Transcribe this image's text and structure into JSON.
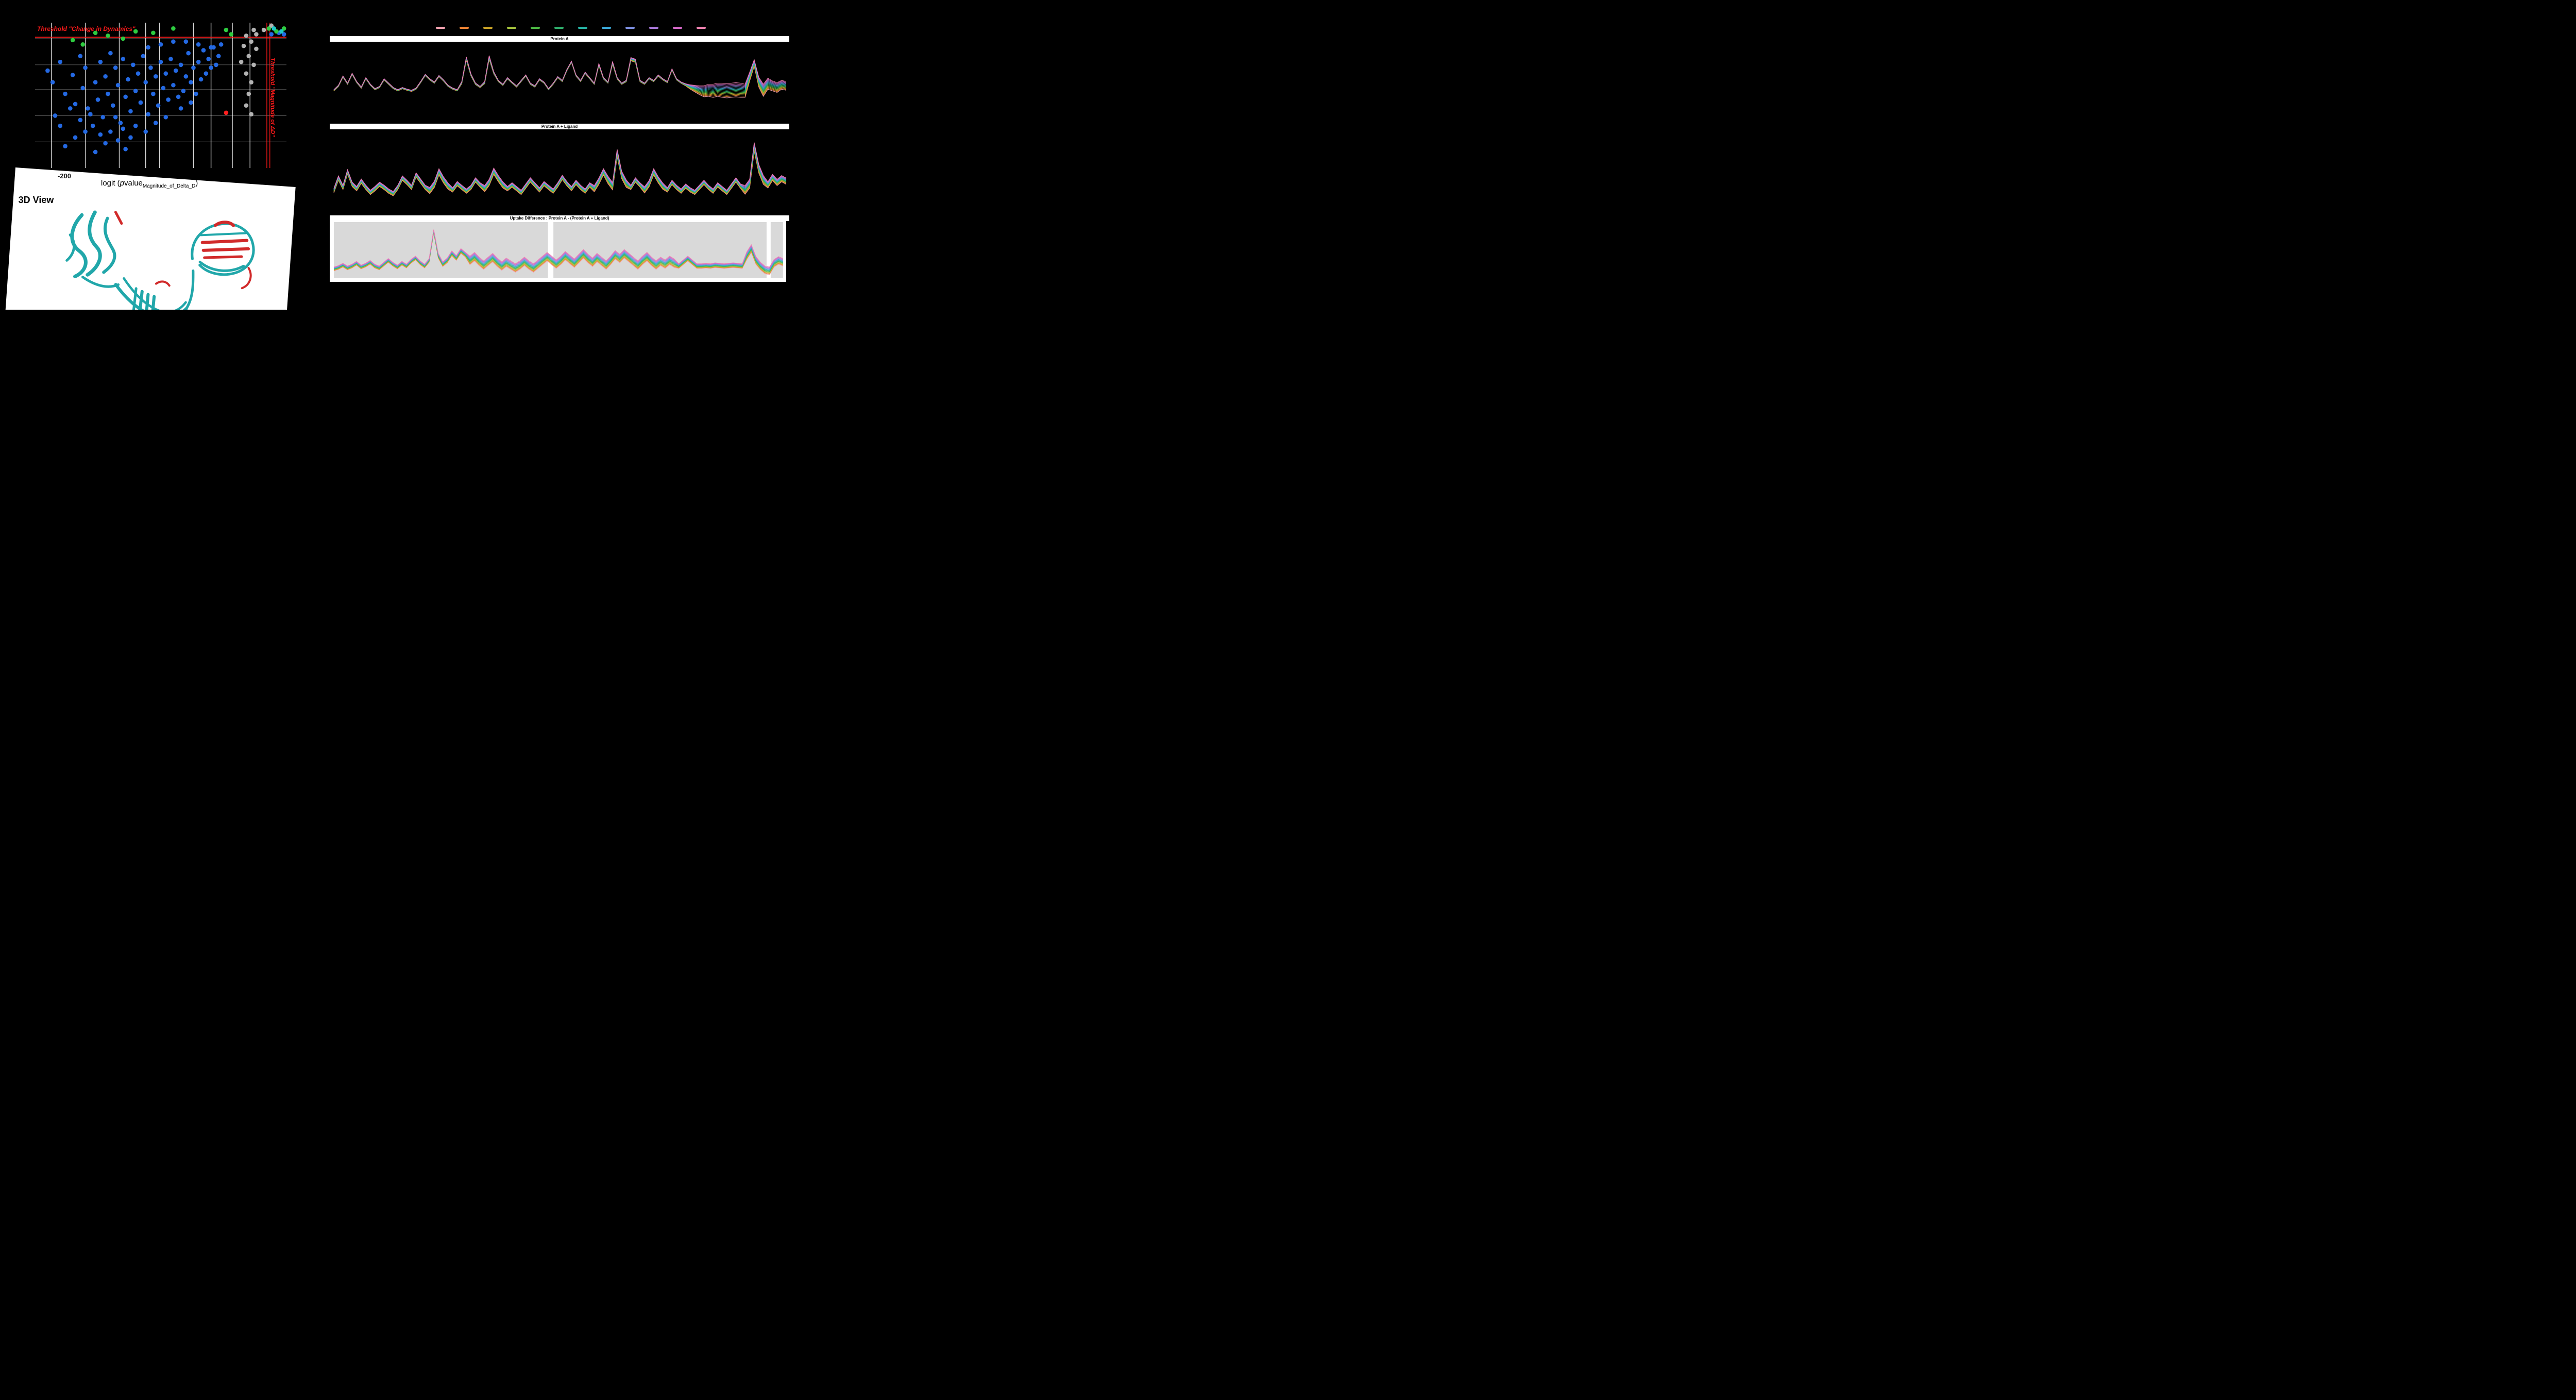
{
  "canvas": {
    "background": "#000000",
    "accent_red": "#ff1a1a"
  },
  "legend": {
    "colors": [
      "#f2a2b0",
      "#ee8434",
      "#c9a227",
      "#a3c13c",
      "#4cb944",
      "#2fae6b",
      "#27b4a5",
      "#3aa8d8",
      "#7d8fe0",
      "#a878d8",
      "#d468c8",
      "#ee82b0"
    ]
  },
  "view3d": {
    "label": "3D View",
    "ribbon_color": "#16a3a6",
    "highlight_color": "#cf1f1f"
  },
  "chart_data": [
    {
      "type": "scatter",
      "name": "volcano-plot",
      "xlabel_parts": {
        "prefix": "logit (",
        "italic": "p",
        "rest": "value",
        "subscript": "Magnitude_of_Delta_D",
        "suffix": ")"
      },
      "x_ticks": [
        "-200"
      ],
      "threshold_labels": {
        "horizontal": "Threshold \"Change in Dynamics\"",
        "vertical": "Threshold \"Magnitude of ΔD\""
      },
      "threshold_color": "#ff1a1a",
      "hline_y": 0.1,
      "vlines_x": [
        0.922,
        0.934
      ],
      "gridlines_x": [
        0.065,
        0.2,
        0.335,
        0.44,
        0.495,
        0.63,
        0.7,
        0.785,
        0.855
      ],
      "gridlines_y": [
        0.11,
        0.29,
        0.46,
        0.64,
        0.82
      ],
      "point_colors": {
        "b": "#2469e3",
        "g": "#2ecc40",
        "y": "#b3b3b3",
        "r": "#ff1f1f",
        "t": "#1fc9c9"
      },
      "points_blue": [
        [
          5,
          33
        ],
        [
          7,
          41
        ],
        [
          8,
          64
        ],
        [
          10,
          27
        ],
        [
          10,
          71
        ],
        [
          12,
          49
        ],
        [
          12,
          85
        ],
        [
          14,
          59
        ],
        [
          15,
          36
        ],
        [
          16,
          56
        ],
        [
          16,
          79
        ],
        [
          18,
          23
        ],
        [
          18,
          67
        ],
        [
          19,
          45
        ],
        [
          20,
          31
        ],
        [
          20,
          75
        ],
        [
          21,
          59
        ],
        [
          22,
          63
        ],
        [
          23,
          71
        ],
        [
          24,
          41
        ],
        [
          24,
          89
        ],
        [
          25,
          53
        ],
        [
          26,
          27
        ],
        [
          26,
          77
        ],
        [
          27,
          65
        ],
        [
          28,
          37
        ],
        [
          28,
          83
        ],
        [
          29,
          49
        ],
        [
          30,
          21
        ],
        [
          30,
          75
        ],
        [
          31,
          57
        ],
        [
          32,
          31
        ],
        [
          32,
          65
        ],
        [
          33,
          43
        ],
        [
          33,
          81
        ],
        [
          34,
          69
        ],
        [
          35,
          25
        ],
        [
          35,
          73
        ],
        [
          36,
          51
        ],
        [
          36,
          87
        ],
        [
          37,
          39
        ],
        [
          38,
          61
        ],
        [
          38,
          79
        ],
        [
          39,
          29
        ],
        [
          40,
          47
        ],
        [
          40,
          71
        ],
        [
          41,
          35
        ],
        [
          42,
          55
        ],
        [
          43,
          23
        ],
        [
          44,
          41
        ],
        [
          44,
          75
        ],
        [
          45,
          63
        ],
        [
          45,
          17
        ],
        [
          46,
          31
        ],
        [
          47,
          49
        ],
        [
          48,
          37
        ],
        [
          48,
          69
        ],
        [
          49,
          57
        ],
        [
          50,
          27
        ],
        [
          50,
          15
        ],
        [
          51,
          45
        ],
        [
          52,
          35
        ],
        [
          52,
          65
        ],
        [
          53,
          53
        ],
        [
          54,
          25
        ],
        [
          55,
          43
        ],
        [
          55,
          13
        ],
        [
          56,
          33
        ],
        [
          57,
          51
        ],
        [
          58,
          29
        ],
        [
          58,
          59
        ],
        [
          59,
          47
        ],
        [
          60,
          37
        ],
        [
          60,
          13
        ],
        [
          61,
          21
        ],
        [
          62,
          41
        ],
        [
          62,
          55
        ],
        [
          63,
          31
        ],
        [
          64,
          49
        ],
        [
          65,
          27
        ],
        [
          65,
          15
        ],
        [
          66,
          39
        ],
        [
          67,
          19
        ],
        [
          68,
          35
        ],
        [
          69,
          25
        ],
        [
          70,
          31
        ],
        [
          70,
          17
        ],
        [
          71,
          17
        ],
        [
          72,
          29
        ],
        [
          73,
          23
        ],
        [
          74,
          15
        ],
        [
          94,
          8
        ],
        [
          97,
          7
        ],
        [
          99,
          8
        ]
      ],
      "points_green": [
        [
          15,
          12
        ],
        [
          19,
          15
        ],
        [
          24,
          7
        ],
        [
          29,
          9
        ],
        [
          35,
          11
        ],
        [
          40,
          6
        ],
        [
          47,
          7
        ],
        [
          55,
          4
        ],
        [
          76,
          5
        ],
        [
          78,
          8
        ],
        [
          93,
          4
        ],
        [
          96,
          6
        ],
        [
          99,
          4
        ]
      ],
      "points_gray": [
        [
          84,
          9
        ],
        [
          86,
          13
        ],
        [
          88,
          18
        ],
        [
          85,
          23
        ],
        [
          87,
          29
        ],
        [
          84,
          35
        ],
        [
          86,
          41
        ],
        [
          85,
          49
        ],
        [
          84,
          57
        ],
        [
          86,
          63
        ],
        [
          83,
          16
        ],
        [
          82,
          27
        ],
        [
          88,
          8
        ],
        [
          87,
          5
        ],
        [
          91,
          5
        ],
        [
          94,
          2
        ]
      ],
      "points_teal": [
        [
          95,
          4
        ],
        [
          98,
          6
        ]
      ],
      "points_red": [
        [
          76,
          62
        ]
      ]
    },
    {
      "type": "line",
      "title": "Protein A",
      "series_count": 12,
      "pad_top": 20,
      "pad_bottom": 30,
      "base": [
        0.3,
        0.38,
        0.55,
        0.42,
        0.6,
        0.45,
        0.35,
        0.52,
        0.4,
        0.32,
        0.36,
        0.5,
        0.42,
        0.34,
        0.3,
        0.34,
        0.31,
        0.29,
        0.33,
        0.45,
        0.58,
        0.5,
        0.44,
        0.56,
        0.48,
        0.38,
        0.33,
        0.3,
        0.44,
        0.88,
        0.58,
        0.42,
        0.36,
        0.44,
        0.9,
        0.62,
        0.47,
        0.4,
        0.52,
        0.44,
        0.37,
        0.47,
        0.57,
        0.42,
        0.37,
        0.5,
        0.44,
        0.32,
        0.42,
        0.54,
        0.47,
        0.67,
        0.82,
        0.57,
        0.47,
        0.62,
        0.52,
        0.42,
        0.77,
        0.52,
        0.44,
        0.8,
        0.52,
        0.42,
        0.47,
        0.87,
        0.84,
        0.47,
        0.42,
        0.52,
        0.47,
        0.57,
        0.5,
        0.45,
        0.68,
        0.5,
        0.44,
        0.4,
        0.36,
        0.33,
        0.3,
        0.28,
        0.3,
        0.29,
        0.31,
        0.3,
        0.29,
        0.3,
        0.31,
        0.3,
        0.29,
        0.55,
        0.8,
        0.45,
        0.3,
        0.42,
        0.38,
        0.35,
        0.4,
        0.38
      ],
      "spread": [
        0.012,
        0.012,
        0.012,
        0.012,
        0.012,
        0.012,
        0.012,
        0.012,
        0.012,
        0.012,
        0.012,
        0.012,
        0.012,
        0.012,
        0.012,
        0.012,
        0.012,
        0.012,
        0.012,
        0.012,
        0.012,
        0.012,
        0.012,
        0.012,
        0.012,
        0.012,
        0.012,
        0.012,
        0.02,
        0.03,
        0.02,
        0.015,
        0.012,
        0.02,
        0.035,
        0.02,
        0.012,
        0.012,
        0.012,
        0.012,
        0.012,
        0.012,
        0.012,
        0.012,
        0.012,
        0.012,
        0.012,
        0.012,
        0.012,
        0.012,
        0.012,
        0.012,
        0.012,
        0.012,
        0.012,
        0.012,
        0.012,
        0.012,
        0.02,
        0.015,
        0.012,
        0.025,
        0.015,
        0.012,
        0.015,
        0.03,
        0.03,
        0.015,
        0.012,
        0.012,
        0.012,
        0.012,
        0.012,
        0.012,
        0.012,
        0.012,
        0.012,
        0.02,
        0.04,
        0.06,
        0.08,
        0.1,
        0.11,
        0.12,
        0.12,
        0.13,
        0.13,
        0.13,
        0.13,
        0.13,
        0.12,
        0.08,
        0.06,
        0.09,
        0.11,
        0.1,
        0.09,
        0.09,
        0.08,
        0.08
      ]
    },
    {
      "type": "line",
      "title": "Protein A + Ligand",
      "series_count": 12,
      "pad_top": 28,
      "pad_bottom": 14,
      "base": [
        0.25,
        0.45,
        0.3,
        0.55,
        0.35,
        0.28,
        0.4,
        0.3,
        0.22,
        0.28,
        0.35,
        0.3,
        0.24,
        0.2,
        0.3,
        0.45,
        0.38,
        0.3,
        0.5,
        0.4,
        0.3,
        0.25,
        0.35,
        0.55,
        0.42,
        0.32,
        0.26,
        0.36,
        0.3,
        0.24,
        0.3,
        0.42,
        0.34,
        0.28,
        0.38,
        0.56,
        0.44,
        0.34,
        0.28,
        0.34,
        0.28,
        0.22,
        0.32,
        0.42,
        0.34,
        0.26,
        0.36,
        0.3,
        0.24,
        0.34,
        0.46,
        0.36,
        0.28,
        0.38,
        0.3,
        0.24,
        0.34,
        0.28,
        0.4,
        0.55,
        0.42,
        0.32,
        0.85,
        0.5,
        0.36,
        0.3,
        0.42,
        0.34,
        0.26,
        0.36,
        0.55,
        0.42,
        0.32,
        0.26,
        0.38,
        0.3,
        0.24,
        0.32,
        0.26,
        0.22,
        0.3,
        0.38,
        0.3,
        0.24,
        0.34,
        0.28,
        0.22,
        0.32,
        0.42,
        0.32,
        0.26,
        0.36,
        0.95,
        0.6,
        0.42,
        0.34,
        0.46,
        0.38,
        0.44,
        0.4
      ],
      "spread": [
        0.035,
        0.035,
        0.035,
        0.035,
        0.035,
        0.035,
        0.035,
        0.035,
        0.035,
        0.035,
        0.035,
        0.035,
        0.035,
        0.035,
        0.035,
        0.035,
        0.035,
        0.035,
        0.035,
        0.035,
        0.035,
        0.05,
        0.05,
        0.05,
        0.05,
        0.05,
        0.035,
        0.035,
        0.035,
        0.035,
        0.035,
        0.035,
        0.035,
        0.05,
        0.05,
        0.05,
        0.05,
        0.05,
        0.035,
        0.035,
        0.035,
        0.035,
        0.035,
        0.035,
        0.035,
        0.035,
        0.035,
        0.035,
        0.035,
        0.035,
        0.035,
        0.035,
        0.035,
        0.035,
        0.035,
        0.035,
        0.035,
        0.05,
        0.05,
        0.05,
        0.06,
        0.06,
        0.06,
        0.06,
        0.06,
        0.035,
        0.035,
        0.035,
        0.05,
        0.05,
        0.05,
        0.05,
        0.05,
        0.035,
        0.035,
        0.035,
        0.035,
        0.035,
        0.035,
        0.035,
        0.035,
        0.035,
        0.035,
        0.035,
        0.035,
        0.035,
        0.035,
        0.035,
        0.035,
        0.035,
        0.07,
        0.07,
        0.07,
        0.07,
        0.07,
        0.05,
        0.05,
        0.05,
        0.05,
        0.05
      ]
    },
    {
      "type": "line",
      "title": "Uptake Difference : Protein A - (Protein A + Ligand)",
      "series_count": 12,
      "pad_top": 12,
      "pad_bottom": 14,
      "plot_bg": "#d9d9d9",
      "bg_rects": [
        [
          0.009,
          0.478
        ],
        [
          0.49,
          0.957
        ],
        [
          0.966,
          0.993
        ]
      ],
      "base": [
        0.12,
        0.15,
        0.2,
        0.14,
        0.18,
        0.24,
        0.16,
        0.2,
        0.26,
        0.18,
        0.14,
        0.22,
        0.3,
        0.22,
        0.16,
        0.24,
        0.18,
        0.28,
        0.35,
        0.25,
        0.18,
        0.3,
        0.92,
        0.4,
        0.22,
        0.3,
        0.45,
        0.35,
        0.5,
        0.42,
        0.3,
        0.38,
        0.28,
        0.2,
        0.28,
        0.36,
        0.26,
        0.18,
        0.26,
        0.2,
        0.14,
        0.2,
        0.28,
        0.2,
        0.14,
        0.22,
        0.3,
        0.38,
        0.3,
        0.22,
        0.3,
        0.4,
        0.32,
        0.24,
        0.34,
        0.44,
        0.34,
        0.26,
        0.36,
        0.28,
        0.2,
        0.3,
        0.42,
        0.34,
        0.44,
        0.36,
        0.28,
        0.2,
        0.3,
        0.38,
        0.28,
        0.2,
        0.28,
        0.22,
        0.3,
        0.24,
        0.18,
        0.26,
        0.34,
        0.26,
        0.18,
        0.18,
        0.19,
        0.18,
        0.2,
        0.19,
        0.18,
        0.19,
        0.2,
        0.19,
        0.18,
        0.4,
        0.55,
        0.3,
        0.18,
        0.1,
        0.08,
        0.24,
        0.3,
        0.26
      ],
      "spread": [
        0.04,
        0.04,
        0.04,
        0.04,
        0.04,
        0.04,
        0.04,
        0.04,
        0.04,
        0.04,
        0.04,
        0.04,
        0.04,
        0.04,
        0.04,
        0.04,
        0.04,
        0.04,
        0.04,
        0.04,
        0.04,
        0.04,
        0.03,
        0.05,
        0.05,
        0.05,
        0.05,
        0.05,
        0.05,
        0.05,
        0.09,
        0.09,
        0.09,
        0.09,
        0.09,
        0.09,
        0.09,
        0.09,
        0.09,
        0.09,
        0.09,
        0.09,
        0.09,
        0.09,
        0.09,
        0.09,
        0.09,
        0.09,
        0.09,
        0.09,
        0.09,
        0.09,
        0.09,
        0.09,
        0.09,
        0.09,
        0.09,
        0.09,
        0.09,
        0.09,
        0.09,
        0.09,
        0.09,
        0.09,
        0.09,
        0.09,
        0.09,
        0.09,
        0.09,
        0.09,
        0.09,
        0.09,
        0.09,
        0.09,
        0.09,
        0.09,
        0.05,
        0.05,
        0.05,
        0.05,
        0.05,
        0.05,
        0.05,
        0.05,
        0.05,
        0.05,
        0.05,
        0.05,
        0.05,
        0.05,
        0.05,
        0.08,
        0.08,
        0.08,
        0.08,
        0.08,
        0.08,
        0.08,
        0.08,
        0.08
      ]
    }
  ]
}
